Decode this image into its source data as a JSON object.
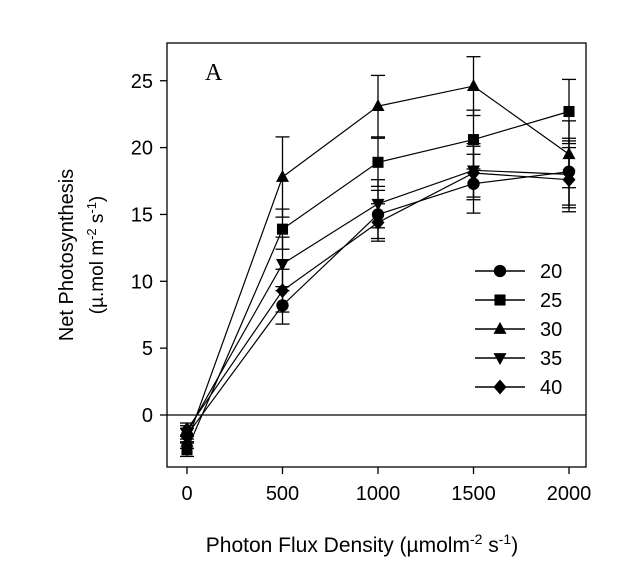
{
  "chart_data": {
    "type": "line",
    "panel_label": "A",
    "xlabel_main": "Photon Flux Density (",
    "xlabel_unit_pre": "µmolm",
    "xlabel_sup1": "-2",
    "xlabel_mid": " s",
    "xlabel_sup2": "-1",
    "xlabel_end": ")",
    "ylabel_line1": "Net Photosynthesis",
    "ylabel_unit_pre": "(µ.mol m",
    "ylabel_sup1": "-2",
    "ylabel_mid": " s",
    "ylabel_sup2": "-1",
    "ylabel_end": ")",
    "xlim": [
      -100,
      2100
    ],
    "ylim": [
      -4,
      28
    ],
    "x_ticks": [
      0,
      500,
      1000,
      1500,
      2000
    ],
    "x_tick_labels": [
      "0",
      "500",
      "1000",
      "1500",
      "2000"
    ],
    "y_ticks": [
      0,
      5,
      10,
      15,
      20,
      25
    ],
    "y_tick_labels": [
      "0",
      "5",
      "10",
      "15",
      "20",
      "25"
    ],
    "zero_line": true,
    "grid": false,
    "legend_position": "right",
    "x": [
      0,
      500,
      1000,
      1500,
      2000
    ],
    "series": [
      {
        "name": "20",
        "marker": "circle",
        "values": [
          -1.5,
          8.2,
          15.0,
          17.3,
          18.2
        ],
        "errors": [
          0.5,
          1.4,
          1.8,
          2.2,
          2.5
        ]
      },
      {
        "name": "25",
        "marker": "square",
        "values": [
          -2.6,
          13.9,
          18.9,
          20.6,
          22.7
        ],
        "errors": [
          0.5,
          1.5,
          1.8,
          2.2,
          2.4
        ]
      },
      {
        "name": "30",
        "marker": "triangle-up",
        "values": [
          -2.0,
          17.8,
          23.1,
          24.6,
          19.5
        ],
        "errors": [
          0.5,
          3.0,
          2.3,
          2.2,
          2.5
        ]
      },
      {
        "name": "35",
        "marker": "triangle-down",
        "values": [
          -1.3,
          11.3,
          15.8,
          18.3,
          18.0
        ],
        "errors": [
          0.5,
          2.0,
          1.8,
          2.0,
          2.5
        ]
      },
      {
        "name": "40",
        "marker": "diamond",
        "values": [
          -1.1,
          9.3,
          14.4,
          18.1,
          17.6
        ],
        "errors": [
          0.5,
          1.6,
          1.4,
          2.0,
          2.4
        ]
      }
    ]
  }
}
